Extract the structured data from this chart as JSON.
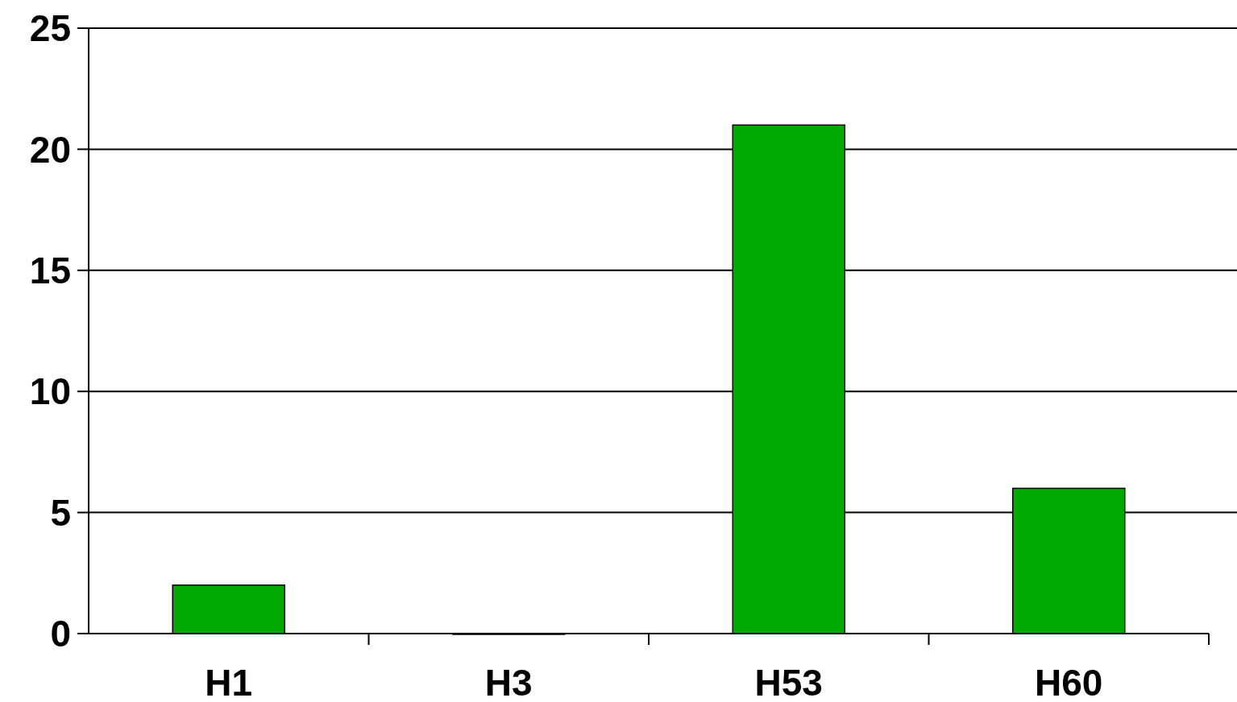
{
  "chart_data": {
    "type": "bar",
    "categories": [
      "H1",
      "H3",
      "H53",
      "H60"
    ],
    "values": [
      2,
      0,
      21,
      6
    ],
    "color": "#00aa00",
    "ylim": [
      0,
      25
    ],
    "yticks": [
      0,
      5,
      10,
      15,
      20,
      25
    ],
    "grid": "y"
  }
}
